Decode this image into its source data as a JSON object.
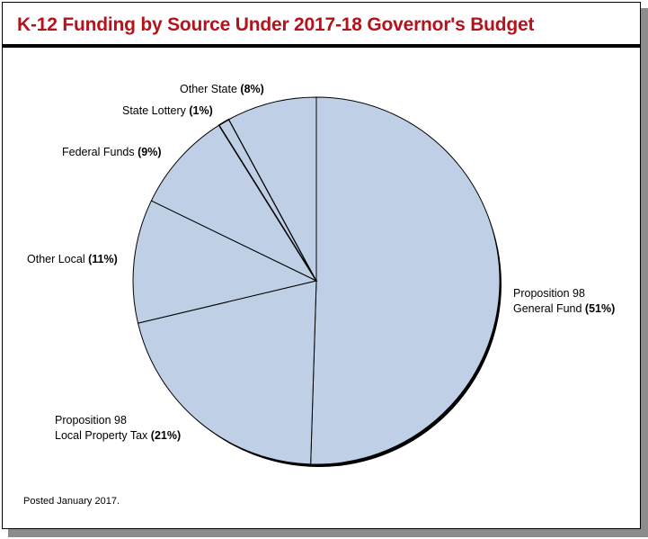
{
  "title": "K-12 Funding by Source Under 2017-18 Governor's Budget",
  "footer": "Posted January 2017.",
  "colors": {
    "title": "#b5121b",
    "slice_fill": "#bfd0e6",
    "stroke": "#000000",
    "frame_shadow": "#8c8c8c"
  },
  "labels": {
    "other_state": {
      "name": "Other State",
      "pct": "(8%)"
    },
    "state_lottery": {
      "name": "State Lottery",
      "pct": "(1%)"
    },
    "federal_funds": {
      "name": "Federal Funds",
      "pct": "(9%)"
    },
    "other_local": {
      "name": "Other Local",
      "pct": "(11%)"
    },
    "prop98_gf": {
      "line1": "Proposition 98",
      "name": "General Fund",
      "pct": "(51%)"
    },
    "prop98_lpt": {
      "line1": "Proposition 98",
      "name": "Local Property Tax",
      "pct": "(21%)"
    }
  },
  "chart_data": {
    "type": "pie",
    "title": "K-12 Funding by Source Under 2017-18 Governor's Budget",
    "categories": [
      "Proposition 98 General Fund",
      "Proposition 98 Local Property Tax",
      "Other Local",
      "Federal Funds",
      "State Lottery",
      "Other State"
    ],
    "values": [
      51,
      21,
      11,
      9,
      1,
      8
    ],
    "unit": "%",
    "start_angle": "12 o'clock, clockwise",
    "note": "Posted January 2017."
  }
}
